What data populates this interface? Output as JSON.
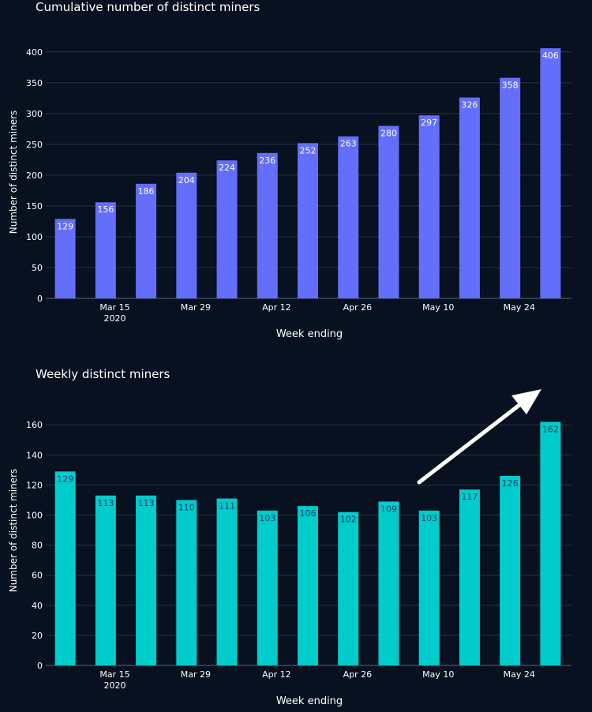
{
  "chart_data": [
    {
      "type": "bar",
      "title": "Cumulative number of distinct miners",
      "xlabel": "Week ending",
      "ylabel": "Number of distinct miners",
      "values": [
        129,
        156,
        186,
        204,
        224,
        236,
        252,
        263,
        280,
        297,
        326,
        358,
        406
      ],
      "ylim": [
        0,
        410
      ],
      "yticks": [
        0,
        50,
        100,
        150,
        200,
        250,
        300,
        350,
        400
      ],
      "xtick_labels": [
        {
          "bar": 1,
          "line1": "Mar 15",
          "line2": "2020"
        },
        {
          "bar": 3,
          "line1": "Mar 29",
          "line2": ""
        },
        {
          "bar": 5,
          "line1": "Apr 12",
          "line2": ""
        },
        {
          "bar": 7,
          "line1": "Apr 26",
          "line2": ""
        },
        {
          "bar": 9,
          "line1": "May 10",
          "line2": ""
        },
        {
          "bar": 11,
          "line1": "May 24",
          "line2": ""
        }
      ],
      "color": "#636efa",
      "label_color": "#ffffff",
      "grid": true
    },
    {
      "type": "bar",
      "title": "Weekly distinct miners",
      "xlabel": "Week ending",
      "ylabel": "Number of distinct miners",
      "values": [
        129,
        113,
        113,
        110,
        111,
        103,
        106,
        102,
        109,
        103,
        117,
        126,
        162
      ],
      "ylim": [
        0,
        168
      ],
      "yticks": [
        0,
        20,
        40,
        60,
        80,
        100,
        120,
        140,
        160
      ],
      "xtick_labels": [
        {
          "bar": 1,
          "line1": "Mar 15",
          "line2": "2020"
        },
        {
          "bar": 3,
          "line1": "Mar 29",
          "line2": ""
        },
        {
          "bar": 5,
          "line1": "Apr 12",
          "line2": ""
        },
        {
          "bar": 7,
          "line1": "Apr 26",
          "line2": ""
        },
        {
          "bar": 9,
          "line1": "May 10",
          "line2": ""
        },
        {
          "bar": 11,
          "line1": "May 24",
          "line2": ""
        }
      ],
      "color": "#00cccc",
      "label_color": "#2a3f5f",
      "grid": true,
      "annotation": "arrow pointing up-right toward last bar"
    }
  ]
}
